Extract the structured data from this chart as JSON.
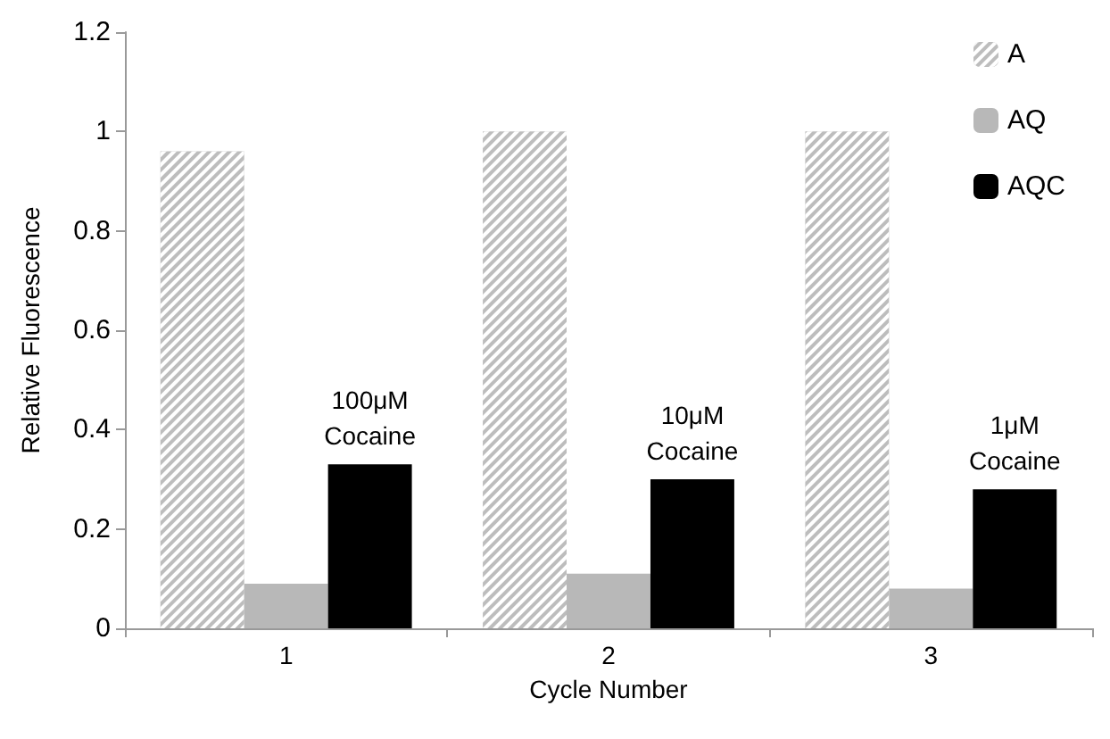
{
  "chart_data": {
    "type": "bar",
    "xlabel": "Cycle Number",
    "ylabel": "Relative Fluorescence",
    "categories": [
      "1",
      "2",
      "3"
    ],
    "series": [
      {
        "name": "A",
        "color": "#bdbdbd",
        "values": [
          0.96,
          1.0,
          1.0
        ]
      },
      {
        "name": "AQ",
        "color": "#b8b8b8",
        "values": [
          0.09,
          0.11,
          0.08
        ]
      },
      {
        "name": "AQC",
        "color": "#000000",
        "values": [
          0.33,
          0.3,
          0.28
        ]
      }
    ],
    "ylim": [
      0,
      1.2
    ],
    "yticks": [
      0,
      0.2,
      0.4,
      0.6,
      0.8,
      1,
      1.2
    ],
    "grid": false,
    "legend": "top right",
    "annotations": [
      "100μM Cocaine",
      "10μM Cocaine",
      "1μM Cocaine"
    ]
  }
}
